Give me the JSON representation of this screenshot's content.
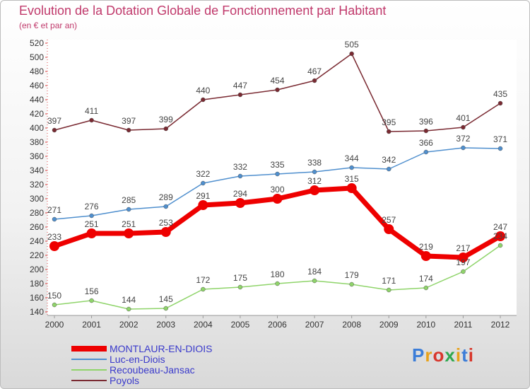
{
  "title": "Evolution de la Dotation Globale de Fonctionnement par Habitant",
  "subtitle": "(en € et par an)",
  "logo": "Proxiti",
  "chart_data": {
    "type": "line",
    "x": [
      "2000",
      "2001",
      "2002",
      "2003",
      "2004",
      "2005",
      "2006",
      "2007",
      "2008",
      "2009",
      "2010",
      "2011",
      "2012"
    ],
    "ylim": [
      140,
      520
    ],
    "yticks": [
      140,
      160,
      180,
      200,
      220,
      240,
      260,
      280,
      300,
      320,
      340,
      360,
      380,
      400,
      420,
      440,
      460,
      480,
      500,
      520
    ],
    "grid": false,
    "legend_position": "bottom-left",
    "series": [
      {
        "name": "MONTLAUR-EN-DIOIS",
        "color": "#ee0000",
        "values": [
          233,
          251,
          251,
          253,
          291,
          294,
          300,
          312,
          315,
          257,
          219,
          217,
          247
        ]
      },
      {
        "name": "Luc-en-Diois",
        "color": "#4f8fce",
        "values": [
          271,
          276,
          285,
          289,
          322,
          332,
          335,
          338,
          344,
          342,
          366,
          372,
          371
        ]
      },
      {
        "name": "Recoubeau-Jansac",
        "color": "#8fd46a",
        "values": [
          150,
          156,
          144,
          145,
          172,
          175,
          180,
          184,
          179,
          171,
          174,
          197,
          234
        ]
      },
      {
        "name": "Poyols",
        "color": "#7a2a32",
        "values": [
          397,
          411,
          397,
          399,
          440,
          447,
          454,
          467,
          505,
          395,
          396,
          401,
          435
        ]
      }
    ]
  }
}
